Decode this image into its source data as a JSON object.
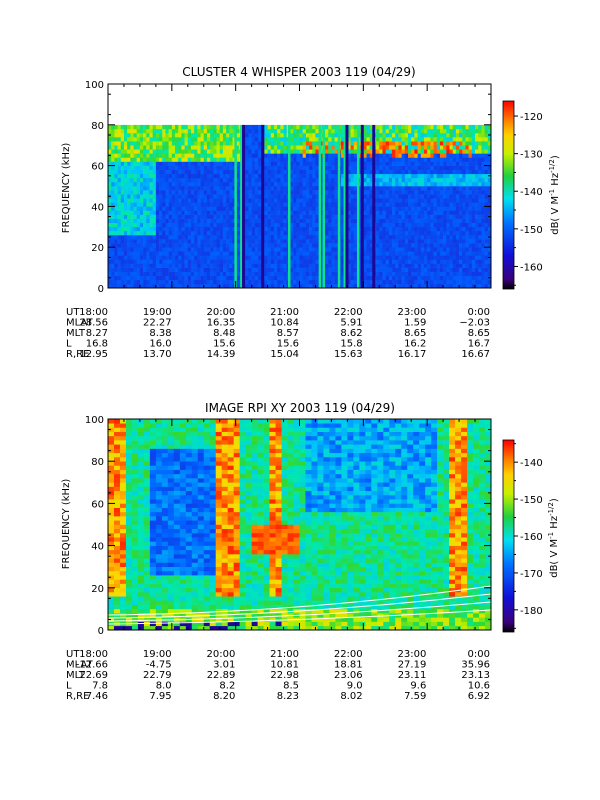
{
  "chart_data": [
    {
      "type": "heatmap",
      "title": "CLUSTER 4 WHISPER 2003 119 (04/29)",
      "ylabel": "FREQUENCY (kHz)",
      "ylim": [
        0,
        100
      ],
      "y_ticks": [
        "0",
        "20",
        "40",
        "60",
        "80",
        "100"
      ],
      "y_tick_values": [
        0,
        20,
        40,
        60,
        80,
        100
      ],
      "x_ticks": [
        "18:00",
        "19:00",
        "20:00",
        "21:00",
        "22:00",
        "23:00",
        "0:00"
      ],
      "data_top_khz": 80,
      "colorbar": {
        "label": "dB( V M⁻¹ Hz⁻¹ᐟ²)",
        "label_parts": [
          "dB( V M",
          "-1",
          " Hz",
          "-1/2",
          ")"
        ],
        "range": [
          -166,
          -116
        ],
        "ticks": [
          -120,
          -130,
          -140,
          -150,
          -160
        ],
        "tick_labels": [
          "-120",
          "-130",
          "-140",
          "-150",
          "-160"
        ]
      },
      "ephemeris": {
        "rows": [
          {
            "label": "UT",
            "values": [
              "18:00",
              "19:00",
              "20:00",
              "21:00",
              "22:00",
              "23:00",
              "0:00"
            ]
          },
          {
            "label": "MLAT",
            "values": [
              "28.56",
              "22.27",
              "16.35",
              "10.84",
              "5.91",
              "1.59",
              "−2.03"
            ]
          },
          {
            "label": "MLT",
            "values": [
              "8.27",
              "8.38",
              "8.48",
              "8.57",
              "8.62",
              "8.65",
              "8.65"
            ]
          },
          {
            "label": "L",
            "values": [
              "16.8",
              "16.0",
              "15.6",
              "15.6",
              "15.8",
              "16.2",
              "16.7"
            ]
          },
          {
            "label": "R,RE",
            "values": [
              "12.95",
              "13.70",
              "14.39",
              "15.04",
              "15.63",
              "16.17",
              "16.67"
            ]
          }
        ]
      }
    },
    {
      "type": "heatmap",
      "title": "IMAGE RPI XY 2003 119 (04/29)",
      "ylabel": "FREQUENCY (kHz)",
      "ylim": [
        0,
        100
      ],
      "y_ticks": [
        "0",
        "20",
        "40",
        "60",
        "80",
        "100"
      ],
      "y_tick_values": [
        0,
        20,
        40,
        60,
        80,
        100
      ],
      "x_ticks": [
        "18:00",
        "19:00",
        "20:00",
        "21:00",
        "22:00",
        "23:00",
        "0:00"
      ],
      "colorbar": {
        "label_parts": [
          "dB( V M",
          "-1",
          " Hz",
          "-1/2",
          ")"
        ],
        "range": [
          -186,
          -134
        ],
        "ticks": [
          -140,
          -150,
          -160,
          -170,
          -180
        ],
        "tick_labels": [
          "-140",
          "-150",
          "-160",
          "-170",
          "-180"
        ]
      },
      "ephemeris": {
        "rows": [
          {
            "label": "UT",
            "values": [
              "18:00",
              "19:00",
              "20:00",
              "21:00",
              "22:00",
              "23:00",
              "0:00"
            ]
          },
          {
            "label": "MLAT",
            "values": [
              "-12.66",
              "-4.75",
              "3.01",
              "10.81",
              "18.81",
              "27.19",
              "35.96"
            ]
          },
          {
            "label": "MLT",
            "values": [
              "22.69",
              "22.79",
              "22.89",
              "22.98",
              "23.06",
              "23.11",
              "23.13"
            ]
          },
          {
            "label": "L",
            "values": [
              "7.8",
              "8.0",
              "8.2",
              "8.5",
              "9.0",
              "9.6",
              "10.6"
            ]
          },
          {
            "label": "R,RE",
            "values": [
              "7.46",
              "7.95",
              "8.20",
              "8.23",
              "8.02",
              "7.59",
              "6.92"
            ]
          }
        ]
      }
    }
  ]
}
